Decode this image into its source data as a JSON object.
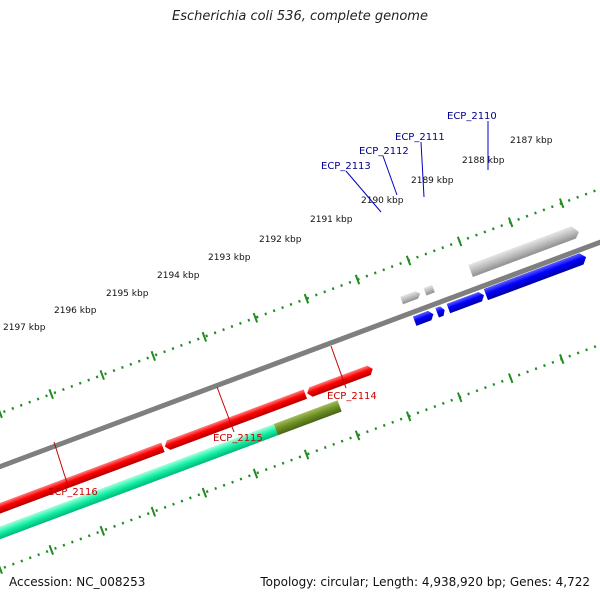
{
  "title": "Escherichia coli 536, complete genome",
  "footer": {
    "accession": "Accession: NC_008253",
    "stats": "Topology: circular; Length: 4,938,920 bp; Genes: 4,722"
  },
  "kbp_labels": [
    "2187 kbp",
    "2188 kbp",
    "2189 kbp",
    "2190 kbp",
    "2191 kbp",
    "2192 kbp",
    "2193 kbp",
    "2194 kbp",
    "2195 kbp",
    "2196 kbp",
    "2197 kbp"
  ],
  "gene_labels": {
    "ECP_2110": "ECP_2110",
    "ECP_2111": "ECP_2111",
    "ECP_2112": "ECP_2112",
    "ECP_2113": "ECP_2113",
    "ECP_2114": "ECP_2114",
    "ECP_2115": "ECP_2115",
    "ECP_2116": "ECP_2116"
  },
  "colors": {
    "backbone": "#7f7f7f",
    "forward_gene": "#ff0000",
    "forward_gene_alt": "#6b8e23",
    "forward_gene_alt2": "#00e5a0",
    "reverse_gene": "#0000ff",
    "rna_gene": "#b0b0b0",
    "tick": "#228b22"
  }
}
